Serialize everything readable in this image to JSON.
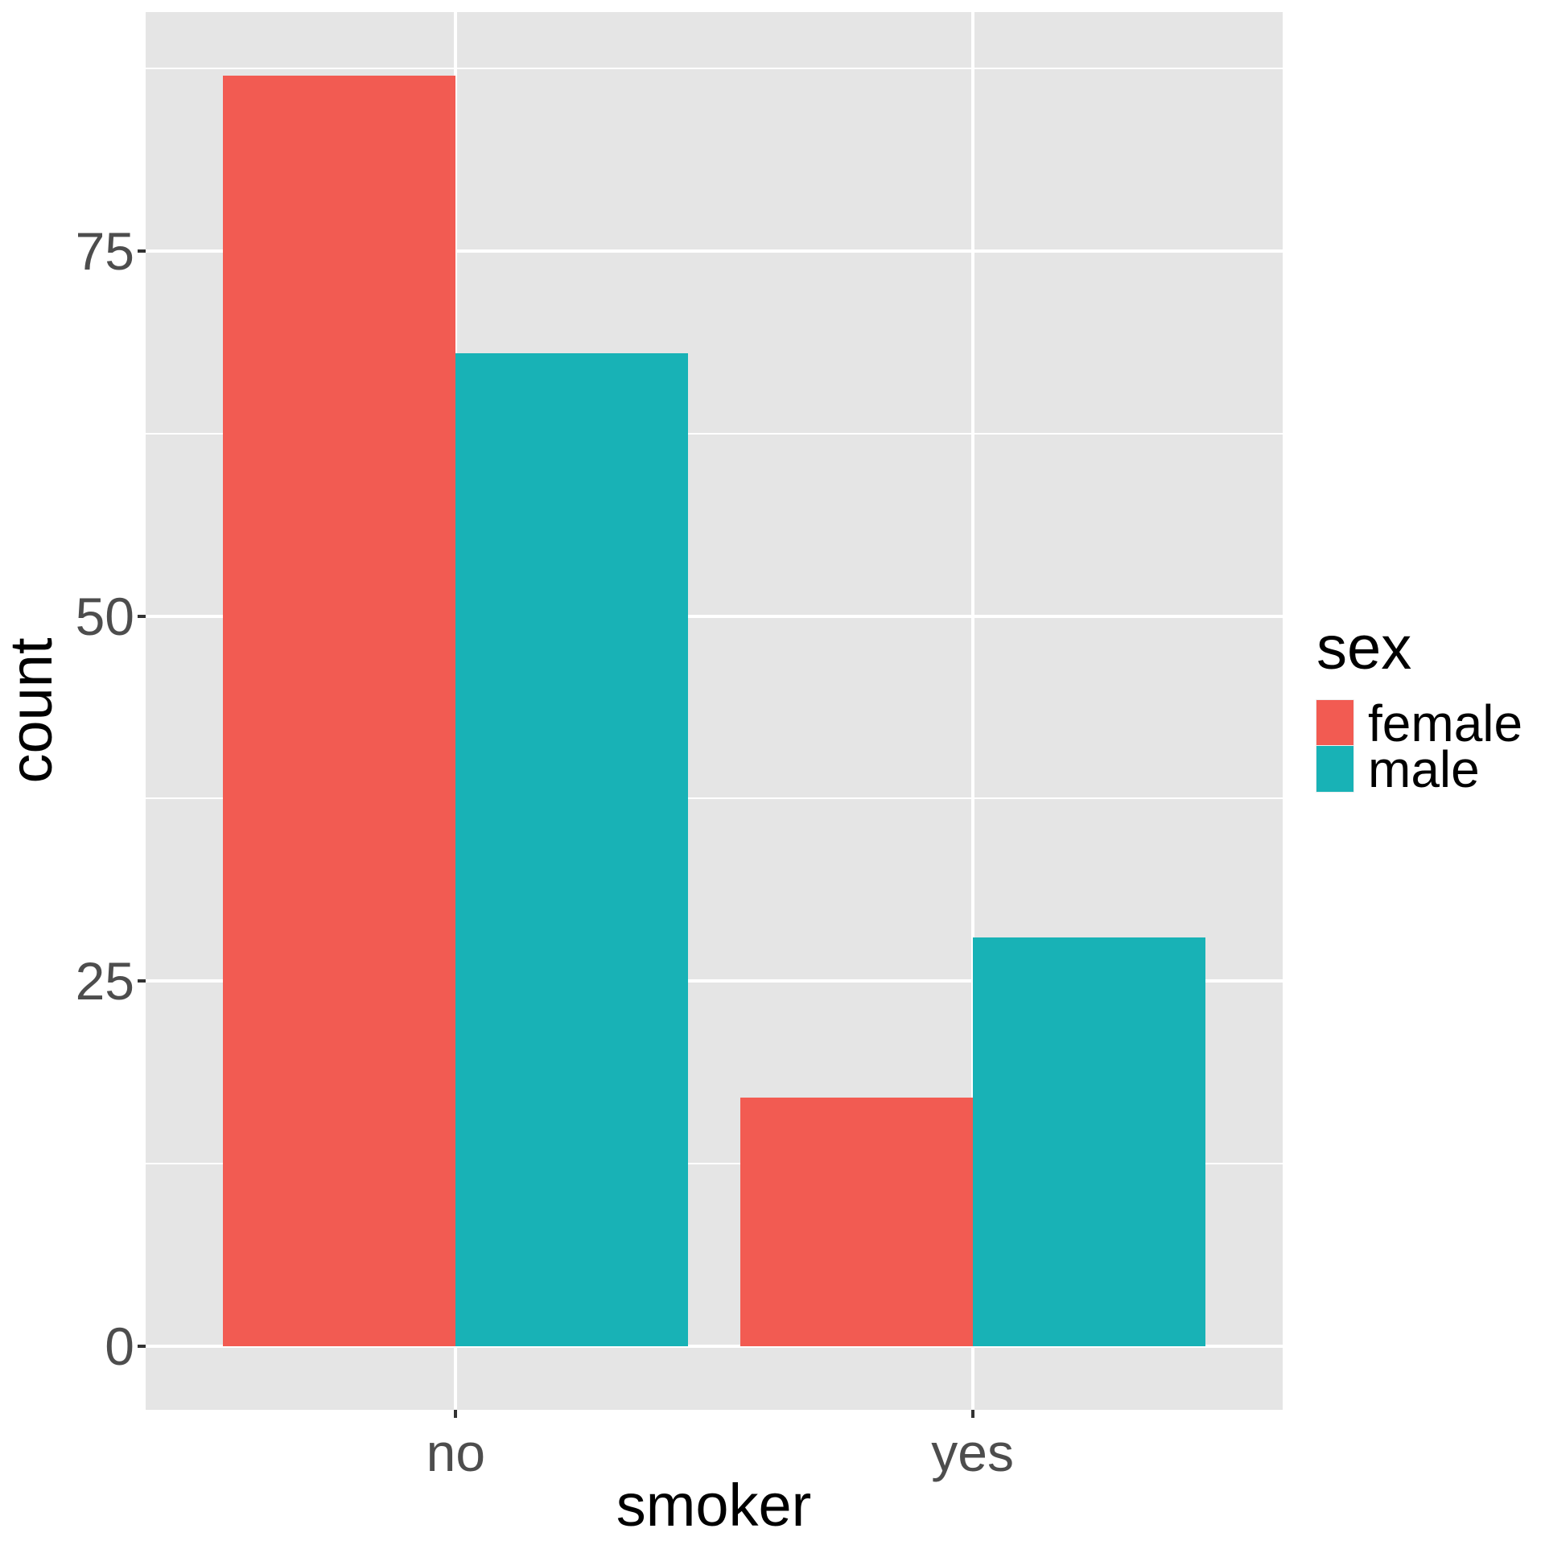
{
  "figure": {
    "background": "#FFFFFF",
    "panel_background": "#E5E5E5",
    "gridline_color": "#FFFFFF",
    "tick_mark_color": "#333333",
    "tick_label_color": "#4D4D4D"
  },
  "axes": {
    "x": {
      "title": "smoker",
      "tick_labels": [
        "no",
        "yes"
      ]
    },
    "y": {
      "title": "count",
      "tick_labels": [
        "0",
        "25",
        "50",
        "75"
      ]
    }
  },
  "legend": {
    "title": "sex",
    "position": "right",
    "items": [
      {
        "label": "female",
        "color": "#F25B52"
      },
      {
        "label": "male",
        "color": "#18B2B6"
      }
    ]
  },
  "chart_data": {
    "type": "bar",
    "grouping": "dodge",
    "title": "",
    "xlabel": "smoker",
    "ylabel": "count",
    "categories": [
      "no",
      "yes"
    ],
    "series": [
      {
        "name": "female",
        "color": "#F25B52",
        "values": [
          87,
          17
        ]
      },
      {
        "name": "male",
        "color": "#18B2B6",
        "values": [
          68,
          28
        ]
      }
    ],
    "y_ticks": [
      0,
      25,
      50,
      75
    ],
    "y_minor_ticks": [
      12.5,
      37.5,
      62.5,
      87.5
    ],
    "ylim": [
      -4.35,
      91.35
    ],
    "bar_group_width": 0.9,
    "grid": true,
    "legend_title": "sex",
    "legend_position": "right"
  }
}
